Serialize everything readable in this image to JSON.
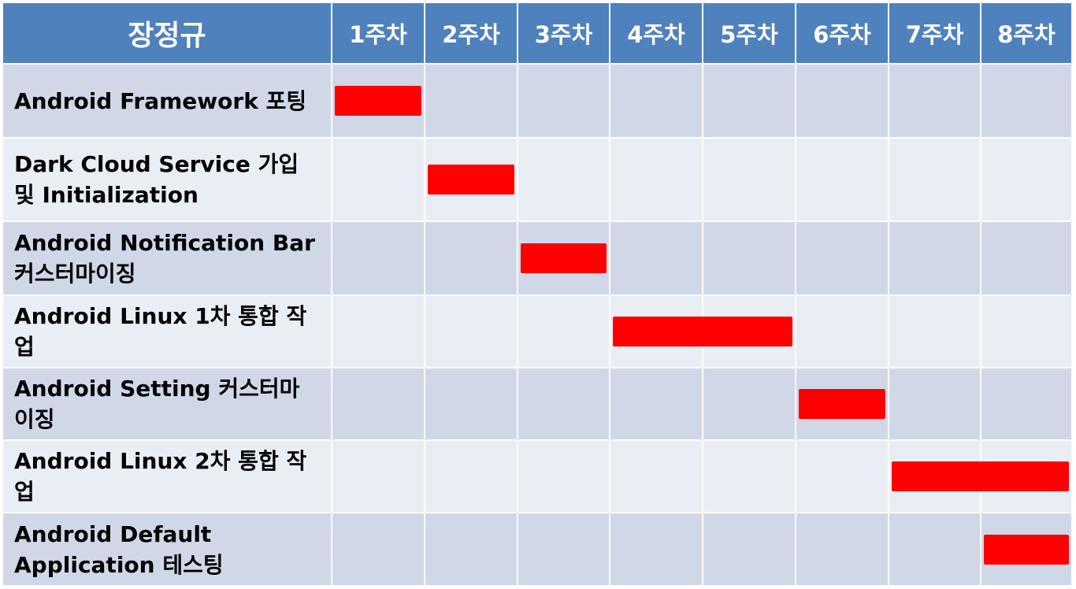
{
  "chart_data": {
    "type": "gantt",
    "header_label": "장정규",
    "weeks": [
      "1주차",
      "2주차",
      "3주차",
      "4주차",
      "5주차",
      "6주차",
      "7주차",
      "8주차"
    ],
    "tasks": [
      {
        "label": "Android Framework 포팅",
        "start": 1,
        "end": 1
      },
      {
        "label": "Dark Cloud Service 가입 및 Initialization",
        "start": 2,
        "end": 2
      },
      {
        "label": "Android Notification Bar 커스터마이징",
        "start": 3,
        "end": 3
      },
      {
        "label": "Android Linux 1차 통합 작업",
        "start": 4,
        "end": 5
      },
      {
        "label": "Android Setting 커스터마이징",
        "start": 6,
        "end": 6
      },
      {
        "label": "Android Linux 2차 통합 작업",
        "start": 7,
        "end": 8
      },
      {
        "label": "Android Default Application 테스팅",
        "start": 8,
        "end": 8
      }
    ],
    "colors": {
      "header": "#4f81bd",
      "row_dark": "#d0d8e8",
      "row_light": "#e9edf4",
      "bar": "#ff0000"
    }
  }
}
